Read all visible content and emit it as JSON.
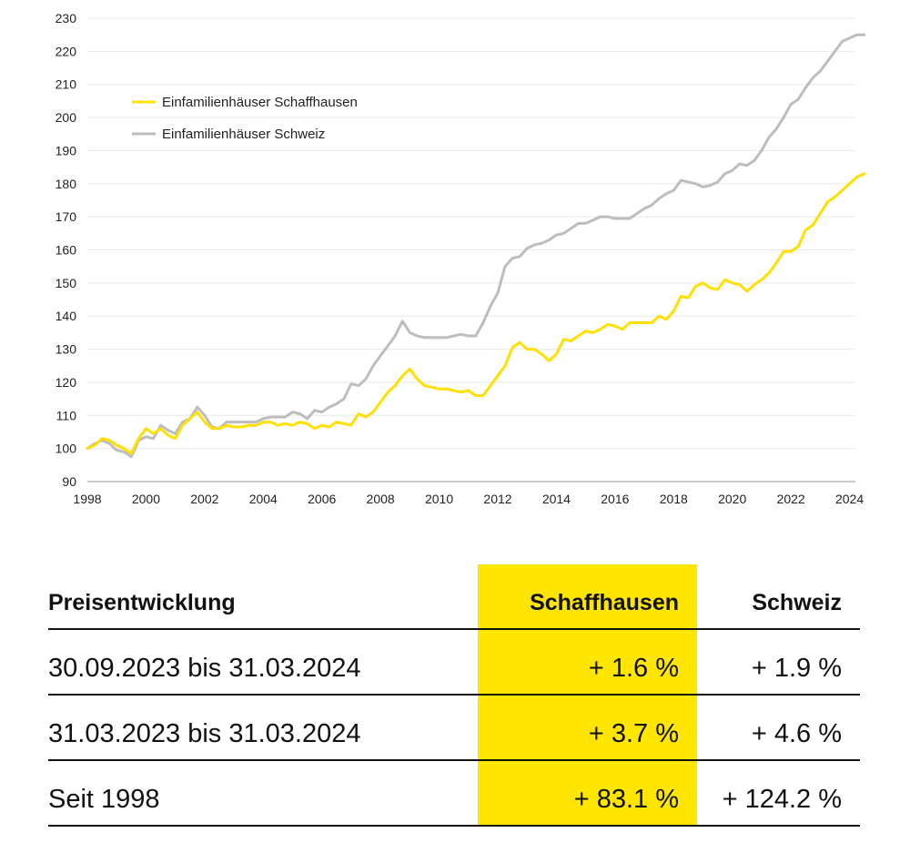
{
  "chart_data": {
    "type": "line",
    "title": "",
    "xlabel": "",
    "ylabel": "",
    "xlim": [
      1998,
      2024.2
    ],
    "ylim": [
      90,
      230
    ],
    "y_ticks": [
      90,
      100,
      110,
      120,
      130,
      140,
      150,
      160,
      170,
      180,
      190,
      200,
      210,
      220,
      230
    ],
    "x_ticks": [
      1998,
      2000,
      2002,
      2004,
      2006,
      2008,
      2010,
      2012,
      2014,
      2016,
      2018,
      2020,
      2022,
      2024
    ],
    "grid": true,
    "legend_position": "top-left",
    "series": [
      {
        "name": "Einfamilienhäuser Schaffhausen",
        "color": "#ffe000",
        "points": [
          [
            1998.0,
            100
          ],
          [
            1998.25,
            101
          ],
          [
            1998.5,
            103
          ],
          [
            1998.75,
            102.5
          ],
          [
            1999.0,
            101
          ],
          [
            1999.25,
            100
          ],
          [
            1999.5,
            98.5
          ],
          [
            1999.75,
            103
          ],
          [
            2000.0,
            106
          ],
          [
            2000.25,
            104.5
          ],
          [
            2000.5,
            106
          ],
          [
            2000.75,
            104
          ],
          [
            2001.0,
            103
          ],
          [
            2001.25,
            107
          ],
          [
            2001.5,
            109
          ],
          [
            2001.75,
            111
          ],
          [
            2002.0,
            108
          ],
          [
            2002.25,
            106
          ],
          [
            2002.5,
            106
          ],
          [
            2002.75,
            107
          ],
          [
            2003.0,
            106.5
          ],
          [
            2003.25,
            106.5
          ],
          [
            2003.5,
            107
          ],
          [
            2003.75,
            107
          ],
          [
            2004.0,
            108
          ],
          [
            2004.25,
            108
          ],
          [
            2004.5,
            107
          ],
          [
            2004.75,
            107.5
          ],
          [
            2005.0,
            107
          ],
          [
            2005.25,
            108
          ],
          [
            2005.5,
            107.5
          ],
          [
            2005.75,
            106
          ],
          [
            2006.0,
            107
          ],
          [
            2006.25,
            106.5
          ],
          [
            2006.5,
            108
          ],
          [
            2006.75,
            107.5
          ],
          [
            2007.0,
            107
          ],
          [
            2007.25,
            110.5
          ],
          [
            2007.5,
            109.5
          ],
          [
            2007.75,
            111
          ],
          [
            2008.0,
            114
          ],
          [
            2008.25,
            117
          ],
          [
            2008.5,
            119
          ],
          [
            2008.75,
            122
          ],
          [
            2009.0,
            124
          ],
          [
            2009.25,
            121
          ],
          [
            2009.5,
            119
          ],
          [
            2009.75,
            118.5
          ],
          [
            2010.0,
            118
          ],
          [
            2010.25,
            118
          ],
          [
            2010.5,
            117.5
          ],
          [
            2010.75,
            117
          ],
          [
            2011.0,
            117.5
          ],
          [
            2011.25,
            116
          ],
          [
            2011.5,
            116
          ],
          [
            2011.75,
            119
          ],
          [
            2012.0,
            122
          ],
          [
            2012.25,
            125
          ],
          [
            2012.5,
            130.5
          ],
          [
            2012.75,
            132
          ],
          [
            2013.0,
            130
          ],
          [
            2013.25,
            130
          ],
          [
            2013.5,
            128.5
          ],
          [
            2013.75,
            126.5
          ],
          [
            2014.0,
            128.5
          ],
          [
            2014.25,
            133
          ],
          [
            2014.5,
            132.5
          ],
          [
            2014.75,
            134
          ],
          [
            2015.0,
            135.5
          ],
          [
            2015.25,
            135
          ],
          [
            2015.5,
            136
          ],
          [
            2015.75,
            137.5
          ],
          [
            2016.0,
            137
          ],
          [
            2016.25,
            136
          ],
          [
            2016.5,
            138
          ],
          [
            2016.75,
            138
          ],
          [
            2017.0,
            138
          ],
          [
            2017.25,
            138
          ],
          [
            2017.5,
            140
          ],
          [
            2017.75,
            139
          ],
          [
            2018.0,
            141.5
          ],
          [
            2018.25,
            146
          ],
          [
            2018.5,
            145.5
          ],
          [
            2018.75,
            149
          ],
          [
            2019.0,
            150
          ],
          [
            2019.25,
            148.5
          ],
          [
            2019.5,
            148
          ],
          [
            2019.75,
            151
          ],
          [
            2020.0,
            150
          ],
          [
            2020.25,
            149.5
          ],
          [
            2020.5,
            147.5
          ],
          [
            2020.75,
            149.5
          ],
          [
            2021.0,
            151
          ],
          [
            2021.25,
            153
          ],
          [
            2021.5,
            156
          ],
          [
            2021.75,
            159.5
          ],
          [
            2022.0,
            159.5
          ],
          [
            2022.25,
            161
          ],
          [
            2022.5,
            166
          ],
          [
            2022.75,
            167.5
          ],
          [
            2023.0,
            171
          ],
          [
            2023.25,
            174.5
          ],
          [
            2023.5,
            176
          ],
          [
            2023.75,
            178
          ],
          [
            2024.0,
            180
          ],
          [
            2024.25,
            182
          ],
          [
            2024.5,
            183
          ]
        ]
      },
      {
        "name": "Einfamilienhäuser Schweiz",
        "color": "#bdbdbd",
        "points": [
          [
            1998.0,
            100
          ],
          [
            1998.25,
            101.5
          ],
          [
            1998.5,
            102.5
          ],
          [
            1998.75,
            101.5
          ],
          [
            1999.0,
            99.5
          ],
          [
            1999.25,
            99
          ],
          [
            1999.5,
            97.5
          ],
          [
            1999.75,
            102.5
          ],
          [
            2000.0,
            103.5
          ],
          [
            2000.25,
            103
          ],
          [
            2000.5,
            107
          ],
          [
            2000.75,
            105.5
          ],
          [
            2001.0,
            104.5
          ],
          [
            2001.25,
            108
          ],
          [
            2001.5,
            109
          ],
          [
            2001.75,
            112.5
          ],
          [
            2002.0,
            110
          ],
          [
            2002.25,
            106.5
          ],
          [
            2002.5,
            106
          ],
          [
            2002.75,
            108
          ],
          [
            2003.0,
            108
          ],
          [
            2003.25,
            108
          ],
          [
            2003.5,
            108
          ],
          [
            2003.75,
            108
          ],
          [
            2004.0,
            109
          ],
          [
            2004.25,
            109.5
          ],
          [
            2004.5,
            109.5
          ],
          [
            2004.75,
            109.5
          ],
          [
            2005.0,
            111
          ],
          [
            2005.25,
            110.5
          ],
          [
            2005.5,
            109
          ],
          [
            2005.75,
            111.5
          ],
          [
            2006.0,
            111
          ],
          [
            2006.25,
            112.5
          ],
          [
            2006.5,
            113.5
          ],
          [
            2006.75,
            115
          ],
          [
            2007.0,
            119.5
          ],
          [
            2007.25,
            119
          ],
          [
            2007.5,
            121
          ],
          [
            2007.75,
            125
          ],
          [
            2008.0,
            128
          ],
          [
            2008.25,
            131
          ],
          [
            2008.5,
            134
          ],
          [
            2008.75,
            138.5
          ],
          [
            2009.0,
            135
          ],
          [
            2009.25,
            134
          ],
          [
            2009.5,
            133.5
          ],
          [
            2009.75,
            133.5
          ],
          [
            2010.0,
            133.5
          ],
          [
            2010.25,
            133.5
          ],
          [
            2010.5,
            134
          ],
          [
            2010.75,
            134.5
          ],
          [
            2011.0,
            134
          ],
          [
            2011.25,
            134
          ],
          [
            2011.5,
            138
          ],
          [
            2011.75,
            143
          ],
          [
            2012.0,
            147
          ],
          [
            2012.25,
            155
          ],
          [
            2012.5,
            157.5
          ],
          [
            2012.75,
            158
          ],
          [
            2013.0,
            160.5
          ],
          [
            2013.25,
            161.5
          ],
          [
            2013.5,
            162
          ],
          [
            2013.75,
            163
          ],
          [
            2014.0,
            164.5
          ],
          [
            2014.25,
            165
          ],
          [
            2014.5,
            166.5
          ],
          [
            2014.75,
            168
          ],
          [
            2015.0,
            168
          ],
          [
            2015.25,
            169
          ],
          [
            2015.5,
            170
          ],
          [
            2015.75,
            170
          ],
          [
            2016.0,
            169.5
          ],
          [
            2016.25,
            169.5
          ],
          [
            2016.5,
            169.5
          ],
          [
            2016.75,
            171
          ],
          [
            2017.0,
            172.5
          ],
          [
            2017.25,
            173.5
          ],
          [
            2017.5,
            175.5
          ],
          [
            2017.75,
            177
          ],
          [
            2018.0,
            178
          ],
          [
            2018.25,
            181
          ],
          [
            2018.5,
            180.5
          ],
          [
            2018.75,
            180
          ],
          [
            2019.0,
            179
          ],
          [
            2019.25,
            179.5
          ],
          [
            2019.5,
            180.5
          ],
          [
            2019.75,
            183
          ],
          [
            2020.0,
            184
          ],
          [
            2020.25,
            186
          ],
          [
            2020.5,
            185.5
          ],
          [
            2020.75,
            187
          ],
          [
            2021.0,
            190
          ],
          [
            2021.25,
            194
          ],
          [
            2021.5,
            196.5
          ],
          [
            2021.75,
            200
          ],
          [
            2022.0,
            204
          ],
          [
            2022.25,
            205.5
          ],
          [
            2022.5,
            209
          ],
          [
            2022.75,
            212
          ],
          [
            2023.0,
            214
          ],
          [
            2023.25,
            217
          ],
          [
            2023.5,
            220
          ],
          [
            2023.75,
            223
          ],
          [
            2024.0,
            224
          ],
          [
            2024.25,
            225
          ],
          [
            2024.5,
            225
          ]
        ]
      }
    ]
  },
  "table": {
    "headers": {
      "label": "Preisentwicklung",
      "col1": "Schaffhausen",
      "col2": "Schweiz"
    },
    "rows": [
      {
        "label": "30.09.2023 bis 31.03.2024",
        "col1": "+ 1.6 %",
        "col2": "+ 1.9 %"
      },
      {
        "label": "31.03.2023 bis 31.03.2024",
        "col1": "+ 3.7 %",
        "col2": "+ 4.6 %"
      },
      {
        "label": "Seit 1998",
        "col1": "+ 83.1 %",
        "col2": "+ 124.2 %"
      }
    ],
    "highlight_color": "#ffe600"
  }
}
